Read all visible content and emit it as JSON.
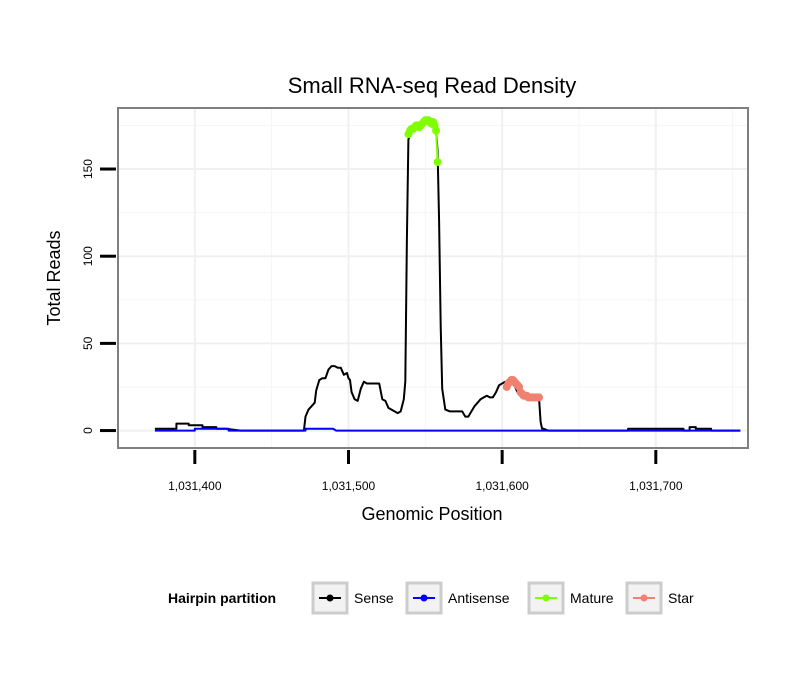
{
  "chart_data": {
    "type": "line",
    "title": "Small RNA-seq Read Density",
    "xlabel": "Genomic Position",
    "ylabel": "Total Reads",
    "xlim": [
      1031350,
      1031760
    ],
    "ylim": [
      -10,
      185
    ],
    "x_ticks": [
      {
        "value": 1031400,
        "label": "1,031,400"
      },
      {
        "value": 1031500,
        "label": "1,031,500"
      },
      {
        "value": 1031600,
        "label": "1,031,600"
      },
      {
        "value": 1031700,
        "label": "1,031,700"
      }
    ],
    "y_ticks": [
      {
        "value": 0,
        "label": "0"
      },
      {
        "value": 50,
        "label": "50"
      },
      {
        "value": 100,
        "label": "100"
      },
      {
        "value": 150,
        "label": "150"
      }
    ],
    "grid": true,
    "legend_position": "bottom",
    "legend_title": "Hairpin partition",
    "series": [
      {
        "name": "Sense",
        "color": "#000000",
        "markers": false,
        "x": [
          1031374,
          1031388,
          1031388,
          1031396,
          1031396,
          1031405,
          1031405,
          1031414,
          1031414,
          1031420,
          1031430,
          1031450,
          1031471,
          1031472,
          1031474,
          1031476,
          1031478,
          1031479,
          1031481,
          1031483,
          1031485,
          1031487,
          1031489,
          1031491,
          1031493,
          1031495,
          1031497,
          1031499,
          1031500,
          1031501,
          1031502,
          1031504,
          1031506,
          1031508,
          1031510,
          1031512,
          1031514,
          1031516,
          1031518,
          1031520,
          1031522,
          1031524,
          1031526,
          1031528,
          1031530,
          1031532,
          1031534,
          1031536,
          1031537,
          1031538,
          1031539,
          1031541,
          1031545,
          1031550,
          1031555,
          1031557,
          1031558,
          1031559,
          1031560,
          1031561,
          1031563,
          1031566,
          1031570,
          1031574,
          1031576,
          1031578,
          1031580,
          1031582,
          1031584,
          1031586,
          1031588,
          1031590,
          1031592,
          1031594,
          1031596,
          1031598,
          1031600,
          1031602,
          1031604,
          1031606,
          1031608,
          1031610,
          1031612,
          1031614,
          1031616,
          1031618,
          1031620,
          1031622,
          1031624,
          1031625,
          1031626,
          1031627,
          1031630,
          1031660,
          1031682,
          1031682,
          1031700,
          1031700,
          1031718,
          1031718,
          1031722,
          1031722,
          1031726,
          1031726,
          1031736,
          1031736,
          1031742,
          1031742,
          1031755
        ],
        "y": [
          1,
          1,
          4,
          4,
          3,
          3,
          2,
          2,
          1,
          1,
          0,
          0,
          0,
          8,
          12,
          14,
          16,
          23,
          29,
          30,
          30,
          35,
          37,
          37,
          36,
          36,
          32,
          33,
          30,
          29,
          22,
          18,
          17,
          24,
          28,
          27,
          27,
          27,
          27,
          27,
          18,
          17,
          13,
          12,
          11,
          10,
          11,
          18,
          28,
          110,
          167,
          172,
          175,
          177,
          175,
          172,
          160,
          120,
          60,
          24,
          12,
          11,
          11,
          11,
          8,
          8,
          11,
          14,
          16,
          18,
          19,
          20,
          19,
          19,
          22,
          26,
          27,
          28,
          28,
          27,
          26,
          22,
          20,
          20,
          19,
          19,
          19,
          19,
          19,
          5,
          1,
          1,
          0,
          0,
          0,
          1,
          1,
          1,
          1,
          0,
          0,
          2,
          2,
          1,
          1,
          0,
          0,
          0,
          0
        ]
      },
      {
        "name": "Antisense",
        "color": "#0000ff",
        "markers": false,
        "x": [
          1031374,
          1031400,
          1031400,
          1031410,
          1031410,
          1031422,
          1031422,
          1031472,
          1031472,
          1031490,
          1031492,
          1031540,
          1031600,
          1031625,
          1031660,
          1031700,
          1031755
        ],
        "y": [
          0,
          0,
          1,
          1,
          1,
          1,
          0,
          0,
          1,
          1,
          0,
          0,
          0,
          0,
          0,
          0,
          0
        ]
      },
      {
        "name": "Mature",
        "color": "#7fff00",
        "markers": true,
        "x": [
          1031539,
          1031540,
          1031541,
          1031542,
          1031543,
          1031544,
          1031545,
          1031546,
          1031547,
          1031548,
          1031549,
          1031550,
          1031551,
          1031552,
          1031553,
          1031554,
          1031555,
          1031556,
          1031557,
          1031558
        ],
        "y": [
          170,
          172,
          173,
          173,
          174,
          175,
          175,
          174,
          175,
          176,
          177,
          178,
          178,
          178,
          177,
          176,
          177,
          175,
          172,
          154
        ]
      },
      {
        "name": "Star",
        "color": "#f08070",
        "markers": true,
        "x": [
          1031603,
          1031604,
          1031605,
          1031606,
          1031607,
          1031608,
          1031609,
          1031610,
          1031611,
          1031612,
          1031613,
          1031614,
          1031615,
          1031616,
          1031617,
          1031618,
          1031619,
          1031620,
          1031621,
          1031622,
          1031623,
          1031624
        ],
        "y": [
          25,
          27,
          28,
          29,
          29,
          28,
          27,
          26,
          25,
          22,
          21,
          20,
          20,
          20,
          19,
          19,
          19,
          19,
          19,
          19,
          19,
          19
        ]
      }
    ]
  }
}
